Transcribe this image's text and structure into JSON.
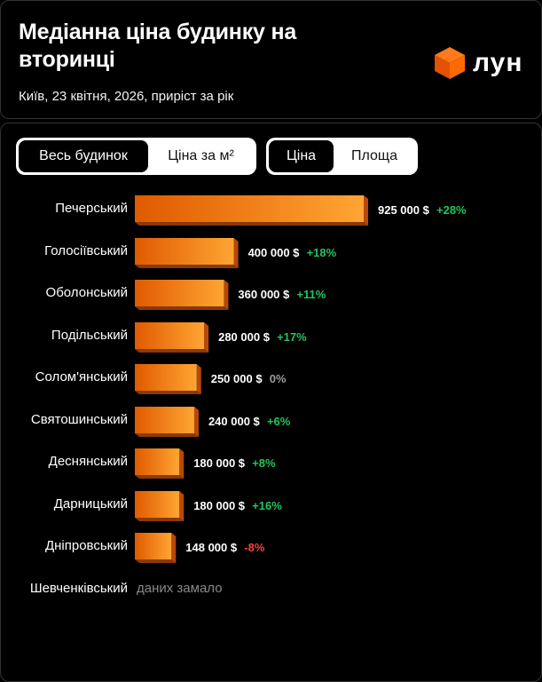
{
  "header": {
    "title": "Медіанна ціна будинку на вторинці",
    "subtitle": "Київ, 23 квітня, 2026, приріст за рік",
    "logo_text": "лун"
  },
  "toggles": {
    "group1": [
      "Весь будинок",
      "Ціна за м²"
    ],
    "group2": [
      "Ціна",
      "Площа"
    ],
    "group1_active": 0,
    "group2_active": 0
  },
  "colors": {
    "bar_dark": "#e05a00",
    "bar_light": "#ffa533",
    "positive": "#22c55e",
    "negative": "#ef4444",
    "neutral": "#9a9a9a"
  },
  "chart_data": {
    "type": "bar",
    "orientation": "horizontal",
    "categories": [
      "Печерський",
      "Голосіївський",
      "Оболонський",
      "Подільський",
      "Солом'янський",
      "Святошинський",
      "Деснянський",
      "Дарницький",
      "Дніпровський",
      "Шевченківський"
    ],
    "values": [
      925000,
      400000,
      360000,
      280000,
      250000,
      240000,
      180000,
      180000,
      148000,
      null
    ],
    "value_labels": [
      "925 000 $",
      "400 000 $",
      "360 000 $",
      "280 000 $",
      "250 000 $",
      "240 000 $",
      "180 000 $",
      "180 000 $",
      "148 000 $",
      ""
    ],
    "change_labels": [
      "+28%",
      "+18%",
      "+11%",
      "+17%",
      "0%",
      "+6%",
      "+8%",
      "+16%",
      "-8%",
      ""
    ],
    "no_data_text": "даних замало",
    "xlim": [
      0,
      925000
    ]
  }
}
